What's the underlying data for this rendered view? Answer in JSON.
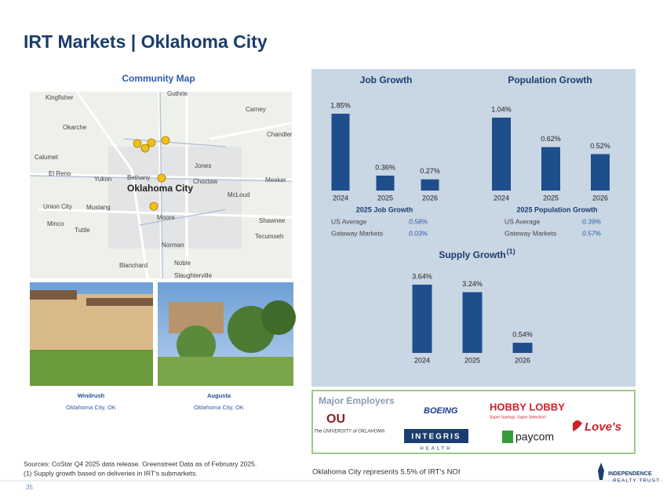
{
  "title": "IRT Markets | Oklahoma City",
  "map": {
    "heading": "Community Map",
    "labels": [
      "Kingfisher",
      "Guthrie",
      "Okarche",
      "Carney",
      "Chandler",
      "Calumet",
      "El Reno",
      "Yukon",
      "Bethany",
      "Jones",
      "Choctaw",
      "Meeker",
      "Oklahoma City",
      "McLoud",
      "Union City",
      "Mustang",
      "Moore",
      "Shawnee",
      "Minco",
      "Tuttle",
      "Tecumseh",
      "Norman",
      "Noble",
      "Blanchard",
      "Slaughterville"
    ]
  },
  "properties": [
    {
      "name": "Windrush",
      "location": "Oklahoma City, OK"
    },
    {
      "name": "Augusta",
      "location": "Oklahoma City, OK"
    }
  ],
  "chart_data": [
    {
      "type": "bar",
      "title": "Job Growth",
      "categories": [
        "2024",
        "2025",
        "2026"
      ],
      "values": [
        1.85,
        0.36,
        0.27
      ],
      "value_labels": [
        "1.85%",
        "0.36%",
        "0.27%"
      ],
      "color": "#1f4e8c"
    },
    {
      "type": "bar",
      "title": "Population Growth",
      "categories": [
        "2024",
        "2025",
        "2026"
      ],
      "values": [
        1.04,
        0.62,
        0.52
      ],
      "value_labels": [
        "1.04%",
        "0.62%",
        "0.52%"
      ],
      "color": "#1f4e8c"
    },
    {
      "type": "bar",
      "title": "Supply Growth",
      "title_note": "(1)",
      "categories": [
        "2024",
        "2025",
        "2026"
      ],
      "values": [
        3.64,
        3.24,
        0.54
      ],
      "value_labels": [
        "3.64%",
        "3.24%",
        "0.54%"
      ],
      "color": "#1f4e8c"
    }
  ],
  "comparisons": [
    {
      "title": "2025 Job Growth",
      "rows": [
        [
          "US Average",
          "0.58%"
        ],
        [
          "Gateway Markets",
          "0.03%"
        ]
      ]
    },
    {
      "title": "2025 Population Growth",
      "rows": [
        [
          "US Average",
          "0.39%"
        ],
        [
          "Gateway Markets",
          "0.57%"
        ]
      ]
    }
  ],
  "employers": {
    "heading": "Major Employers",
    "logos": [
      "The UNIVERSITY of OKLAHOMA",
      "BOEING",
      "HOBBY LOBBY",
      "Super Savings. Super Selection!",
      "INTEGRIS",
      "HEALTH",
      "paycom",
      "Love's"
    ]
  },
  "footnotes": [
    "Sources: CoStar Q4 2025 data release. Greenstreet Data as of February 2025.",
    "(1)  Supply growth based on deliveries in IRT's submarkets."
  ],
  "noi_note": "Oklahoma City represents 5.5% of IRT's NOI",
  "page_number": "35",
  "logo": [
    "INDEPENDENCE",
    "REALTY TRUST"
  ]
}
